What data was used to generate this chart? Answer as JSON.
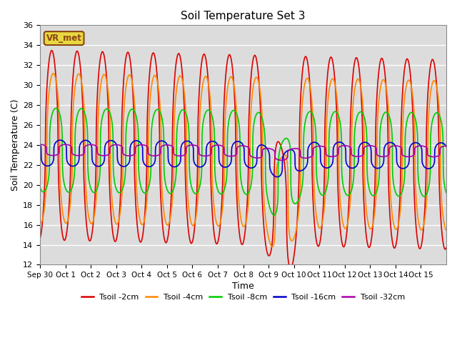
{
  "title": "Soil Temperature Set 3",
  "xlabel": "Time",
  "ylabel": "Soil Temperature (C)",
  "ylim": [
    12,
    36
  ],
  "xlim_start": 0,
  "xlim_end": 16,
  "background_color": "#dcdcdc",
  "grid_color": "white",
  "annotation_text": "VR_met",
  "annotation_bg": "#e8d840",
  "annotation_border": "#8b4513",
  "series": [
    {
      "label": "Tsoil -2cm",
      "color": "#dd0000",
      "lw": 1.2
    },
    {
      "label": "Tsoil -4cm",
      "color": "#ff8800",
      "lw": 1.2
    },
    {
      "label": "Tsoil -8cm",
      "color": "#00cc00",
      "lw": 1.2
    },
    {
      "label": "Tsoil -16cm",
      "color": "#0000cc",
      "lw": 1.2
    },
    {
      "label": "Tsoil -32cm",
      "color": "#aa00aa",
      "lw": 1.2
    }
  ],
  "xtick_positions": [
    0,
    1,
    2,
    3,
    4,
    5,
    6,
    7,
    8,
    9,
    10,
    11,
    12,
    13,
    14,
    15
  ],
  "xtick_labels": [
    "Sep 30",
    "Oct 1",
    "Oct 2",
    "Oct 3",
    "Oct 4",
    "Oct 5",
    "Oct 6",
    "Oct 7",
    "Oct 8",
    "Oct 9",
    "Oct 10",
    "Oct 11",
    "Oct 12",
    "Oct 13",
    "Oct 14",
    "Oct 15"
  ],
  "ytick_positions": [
    12,
    14,
    16,
    18,
    20,
    22,
    24,
    26,
    28,
    30,
    32,
    34,
    36
  ]
}
